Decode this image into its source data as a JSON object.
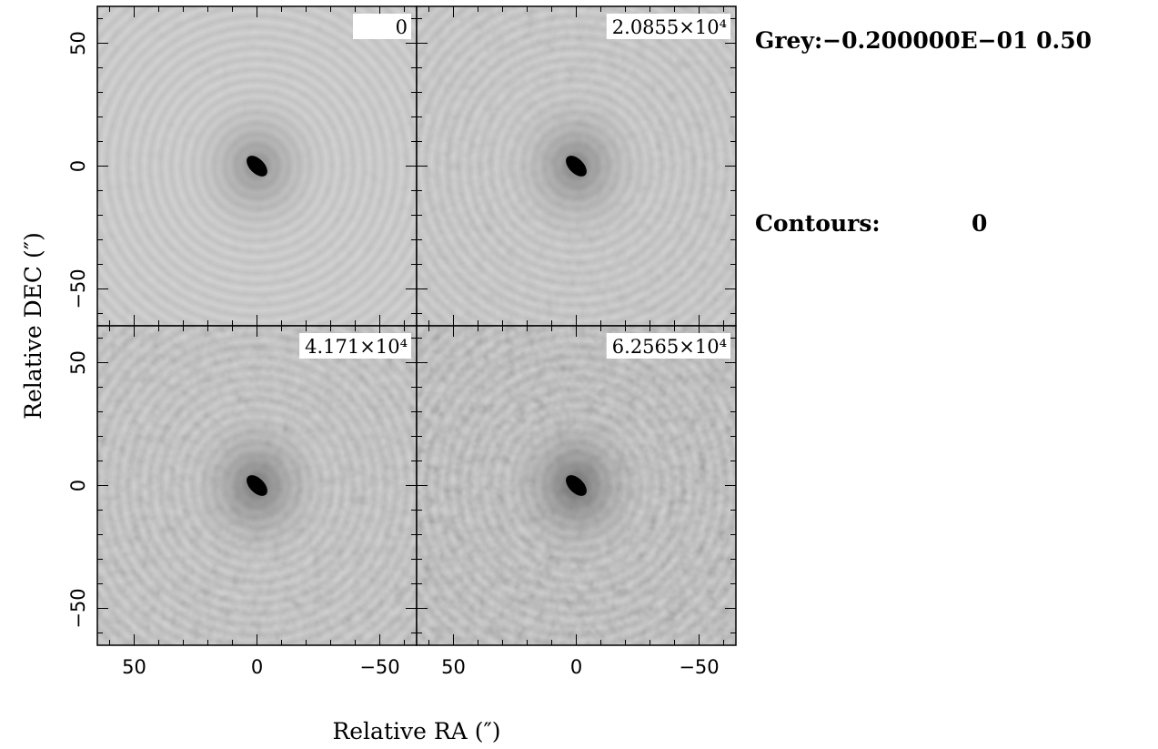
{
  "panels": [
    {
      "label": "0"
    },
    {
      "label": "2.0855×10⁴"
    },
    {
      "label": "4.171×10⁴"
    },
    {
      "label": "6.2565×10⁴"
    }
  ],
  "axes": {
    "xlabel": "Relative RA (″)",
    "ylabel": "Relative DEC (″)",
    "xlim": [
      65,
      -65
    ],
    "ylim": [
      -65,
      65
    ],
    "xticks": [
      50,
      0,
      {
        "value": -50,
        "label": "−50"
      }
    ],
    "yticks": [
      {
        "value": -50,
        "label": "−50"
      },
      0,
      50
    ],
    "minor_tick_step": 10
  },
  "legend": {
    "grey": "Grey:−0.200000E−01  0.50",
    "contours_label": "Contours:",
    "contours_value": "0"
  }
}
